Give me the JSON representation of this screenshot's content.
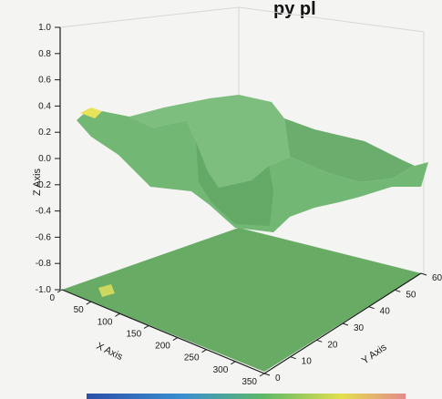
{
  "title_fragment": "py   pl",
  "chart_data": {
    "type": "surface3d",
    "zlabel": "Z Axis",
    "xlabel": "X Axis",
    "ylabel": "Y Axis",
    "z_ticks": [
      "1.0",
      "0.8",
      "0.6",
      "0.4",
      "0.2",
      "0.0",
      "-0.2",
      "-0.4",
      "-0.6",
      "-0.8",
      "-1.0"
    ],
    "x_ticks": [
      "0",
      "50",
      "100",
      "150",
      "200",
      "250",
      "300",
      "350"
    ],
    "y_ticks": [
      "0",
      "10",
      "20",
      "30",
      "40",
      "50",
      "60"
    ],
    "zlim": [
      -1.0,
      1.0
    ],
    "xlim": [
      0,
      350
    ],
    "ylim": [
      0,
      60
    ],
    "surface_profile": {
      "x": [
        0,
        50,
        100,
        150,
        200,
        250,
        300,
        350
      ],
      "z": [
        0.3,
        0.35,
        0.3,
        0.15,
        -0.3,
        -0.45,
        -0.2,
        0.2
      ]
    },
    "surface_color": "#6cb170",
    "floor_color": "#5fa65c",
    "highlight_color": "#e9e35c",
    "colorbar_colors": [
      "#2b4fa8",
      "#3a8fd0",
      "#5ab869",
      "#e3df4d",
      "#e38a8a"
    ]
  }
}
